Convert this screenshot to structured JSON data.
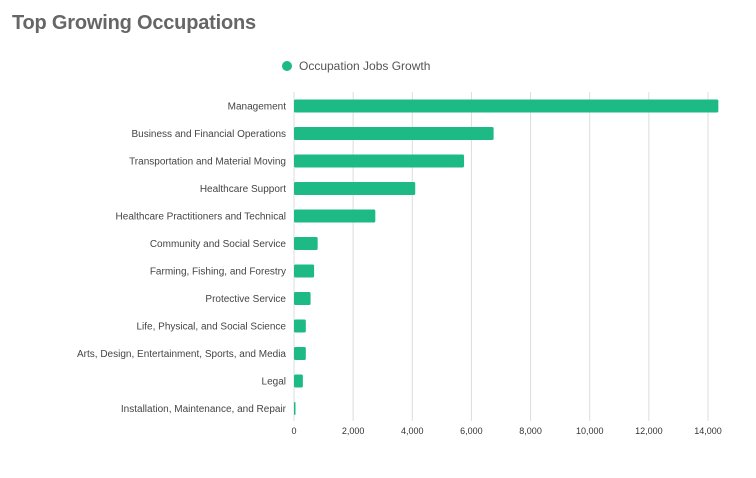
{
  "colors": {
    "bar": "#1dba86",
    "grid": "#dddddd",
    "title": "#666666"
  },
  "chart_data": {
    "type": "bar",
    "orientation": "horizontal",
    "title": "Top Growing Occupations",
    "legend": {
      "position": "top-center"
    },
    "xlim": [
      0,
      14000
    ],
    "xticks": [
      0,
      2000,
      4000,
      6000,
      8000,
      10000,
      12000,
      14000
    ],
    "xtick_labels": [
      "0",
      "2,000",
      "4,000",
      "6,000",
      "8,000",
      "10,000",
      "12,000",
      "14,000"
    ],
    "grid": true,
    "categories": [
      "Management",
      "Business and Financial Operations",
      "Transportation and Material Moving",
      "Healthcare Support",
      "Healthcare Practitioners and Technical",
      "Community and Social Service",
      "Farming, Fishing, and Forestry",
      "Protective Service",
      "Life, Physical, and Social Science",
      "Arts, Design, Entertainment, Sports, and Media",
      "Legal",
      "Installation, Maintenance, and Repair"
    ],
    "series": [
      {
        "name": "Occupation Jobs Growth",
        "values": [
          14350,
          6750,
          5750,
          4100,
          2750,
          800,
          680,
          560,
          400,
          400,
          300,
          50
        ]
      }
    ]
  }
}
